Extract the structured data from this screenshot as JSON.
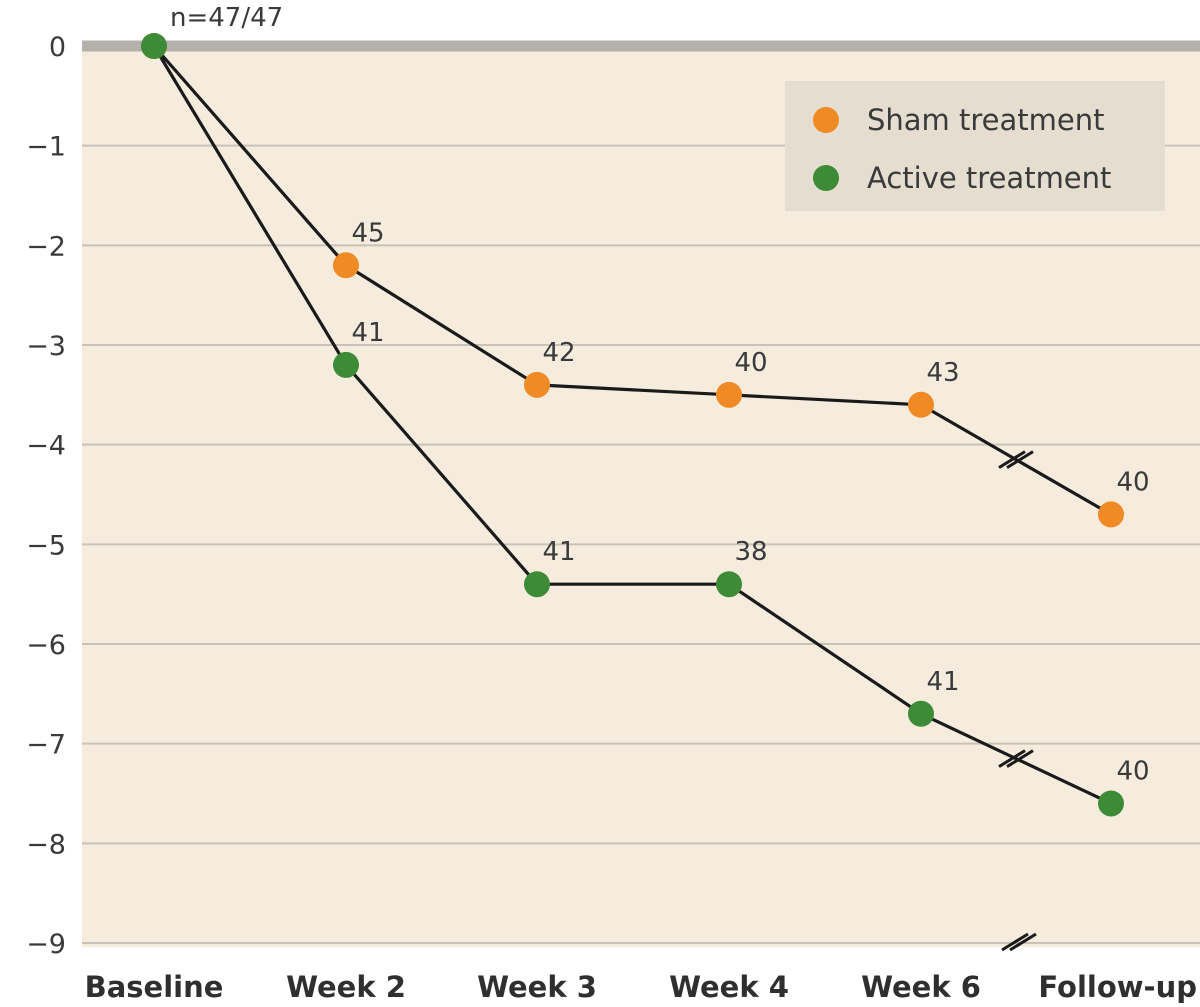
{
  "chart_data": {
    "type": "line",
    "title": "",
    "xlabel": "",
    "ylabel": "",
    "categories": [
      "Baseline",
      "Week 2",
      "Week 3",
      "Week 4",
      "Week 6",
      "Follow-up"
    ],
    "ylim": [
      -9,
      0
    ],
    "yticks": [
      "0",
      "−1",
      "−2",
      "−3",
      "−4",
      "−5",
      "−6",
      "−7",
      "−8",
      "−9"
    ],
    "grid": true,
    "axis_break": "between Week 6 and Follow-up",
    "legend_position": "top-right",
    "colors": {
      "background": "#f5ecdd",
      "gridline": "#c9c2b8",
      "zero_line": "#b4b0ab",
      "legend_bg": "#e5ddcf",
      "line": "#1a1a1a"
    },
    "baseline_annotation": "n=47/47",
    "series": [
      {
        "name": "Sham treatment",
        "color": "#f08a24",
        "values": [
          0,
          -2.2,
          -3.4,
          -3.5,
          -3.6,
          -4.7
        ],
        "n_labels": [
          "",
          "45",
          "42",
          "40",
          "43",
          "40"
        ]
      },
      {
        "name": "Active treatment",
        "color": "#3d8b37",
        "values": [
          0,
          -3.2,
          -5.4,
          -5.4,
          -6.7,
          -7.6
        ],
        "n_labels": [
          "",
          "41",
          "41",
          "38",
          "41",
          "40"
        ]
      }
    ]
  }
}
